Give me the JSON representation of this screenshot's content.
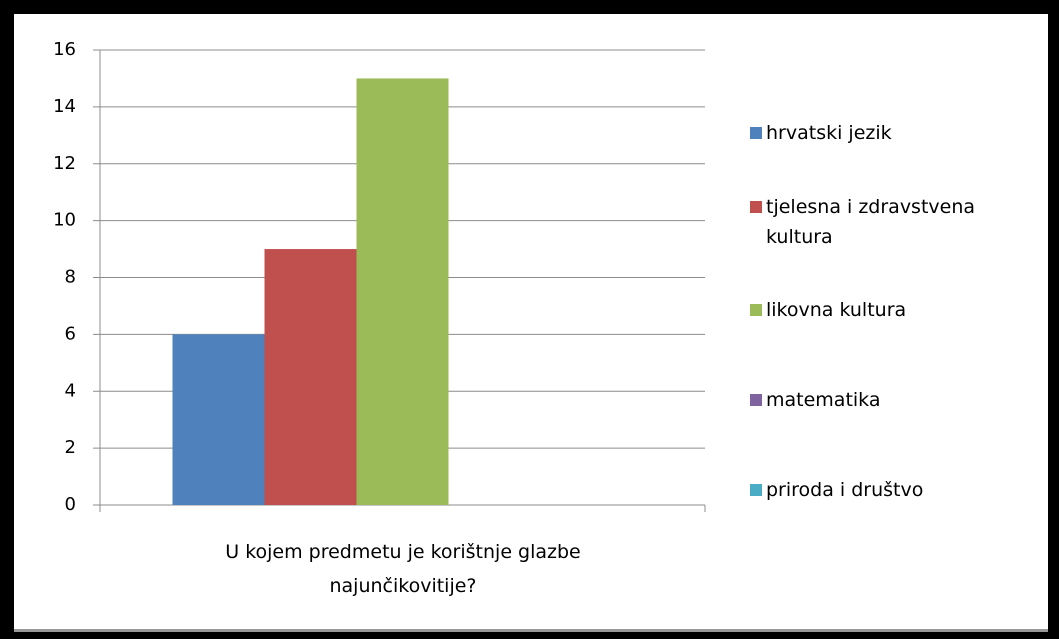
{
  "chart_data": {
    "type": "bar",
    "categories": [
      "U kojem predmetu je korištnje glazbe najunčikovitije?"
    ],
    "series": [
      {
        "name": "hrvatski jezik",
        "color": "#4f81bd",
        "values": [
          6
        ]
      },
      {
        "name": "tjelesna i zdravstvena kultura",
        "color": "#c0504d",
        "values": [
          9
        ]
      },
      {
        "name": "likovna kultura",
        "color": "#9bbb59",
        "values": [
          15
        ]
      },
      {
        "name": "matematika",
        "color": "#8064a2",
        "values": [
          0
        ]
      },
      {
        "name": "priroda i društvo",
        "color": "#4bacc6",
        "values": [
          0
        ]
      }
    ],
    "ylim": [
      0,
      16
    ],
    "yticks": [
      0,
      2,
      4,
      6,
      8,
      10,
      12,
      14,
      16
    ],
    "grid": true,
    "legend": "right"
  }
}
